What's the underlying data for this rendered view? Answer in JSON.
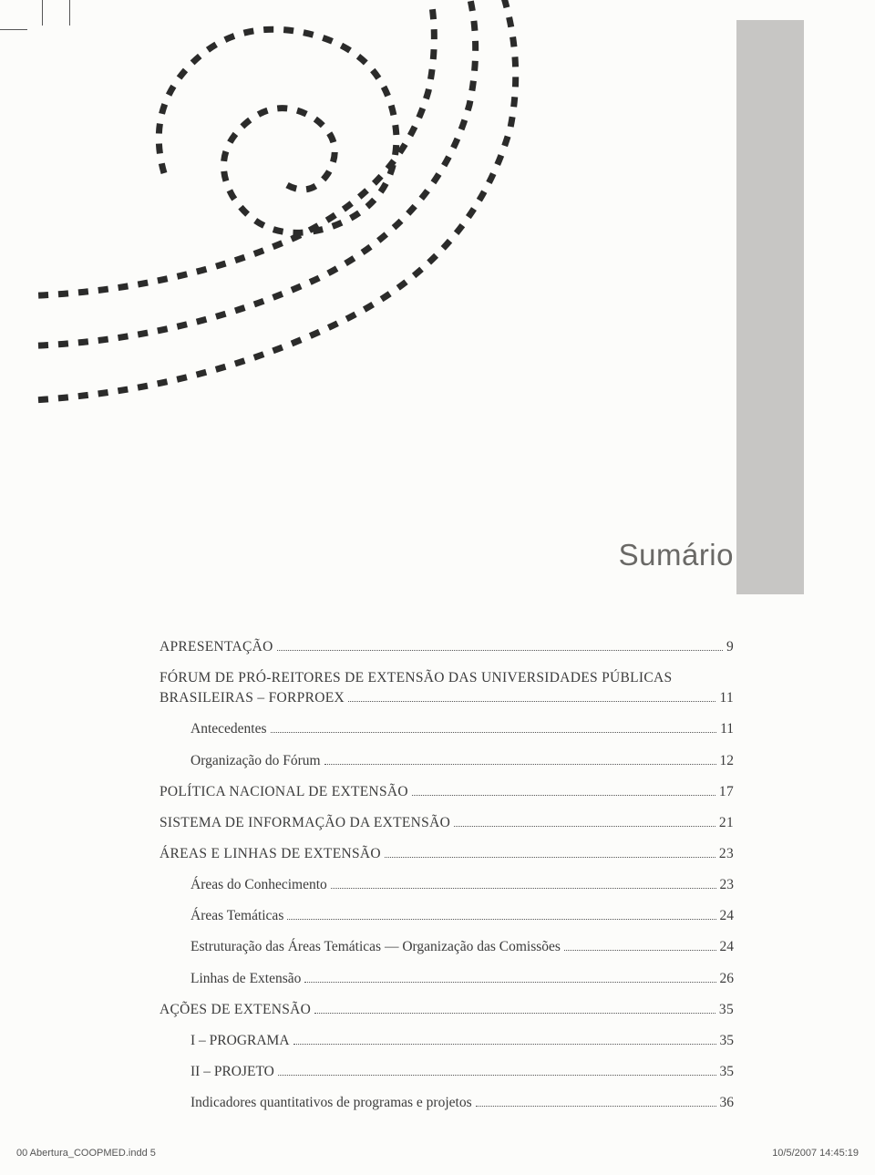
{
  "title": "Sumário",
  "gray_block_color": "#c7c6c4",
  "background_color": "#fcfcfa",
  "swirl": {
    "stroke": "#2b2b2a",
    "dash": "10 10",
    "width": 6
  },
  "toc": [
    {
      "label": "APRESENTAÇÃO",
      "page": "9",
      "level": "section"
    },
    {
      "label": "FÓRUM DE PRÓ-REITORES DE EXTENSÃO DAS UNIVERSIDADES PÚBLICAS BRASILEIRAS – FORPROEX",
      "page": "11",
      "level": "section",
      "multiline": true
    },
    {
      "label": "Antecedentes",
      "page": "11",
      "level": "sub"
    },
    {
      "label": "Organização do Fórum",
      "page": "12",
      "level": "sub"
    },
    {
      "label": "POLÍTICA NACIONAL DE EXTENSÃO",
      "page": "17",
      "level": "section"
    },
    {
      "label": "SISTEMA DE INFORMAÇÃO DA EXTENSÃO",
      "page": "21",
      "level": "section"
    },
    {
      "label": "ÁREAS E LINHAS DE EXTENSÃO",
      "page": "23",
      "level": "section"
    },
    {
      "label": "Áreas do Conhecimento",
      "page": "23",
      "level": "sub"
    },
    {
      "label": "Áreas Temáticas",
      "page": "24",
      "level": "sub"
    },
    {
      "label": "Estruturação das Áreas Temáticas — Organização das Comissões",
      "page": "24",
      "level": "sub"
    },
    {
      "label": "Linhas de Extensão",
      "page": "26",
      "level": "sub"
    },
    {
      "label": "AÇÕES DE EXTENSÃO",
      "page": "35",
      "level": "section"
    },
    {
      "label": "I – PROGRAMA",
      "page": "35",
      "level": "sub"
    },
    {
      "label": "II – PROJETO",
      "page": "35",
      "level": "sub"
    },
    {
      "label": "Indicadores quantitativos de programas e projetos",
      "page": "36",
      "level": "sub"
    }
  ],
  "footer": {
    "left": "00 Abertura_COOPMED.indd   5",
    "right": "10/5/2007   14:45:19"
  }
}
